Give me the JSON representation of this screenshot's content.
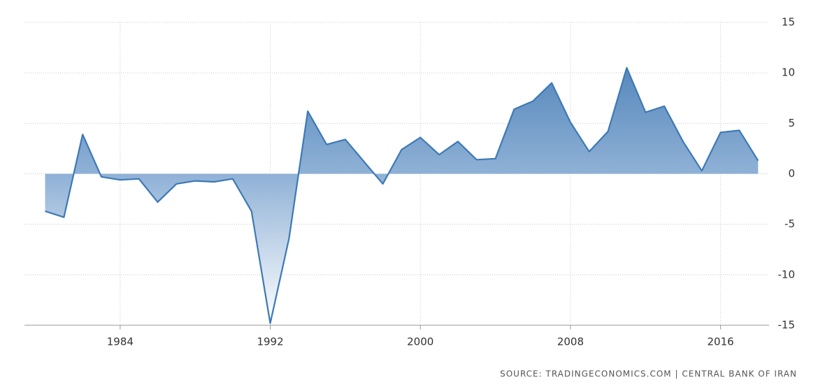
{
  "chart_data": {
    "type": "area",
    "x": [
      1980,
      1981,
      1982,
      1983,
      1984,
      1985,
      1986,
      1987,
      1988,
      1989,
      1990,
      1991,
      1992,
      1993,
      1994,
      1995,
      1996,
      1997,
      1998,
      1999,
      2000,
      2001,
      2002,
      2003,
      2004,
      2005,
      2006,
      2007,
      2008,
      2009,
      2010,
      2011,
      2012,
      2013,
      2014,
      2015,
      2016,
      2017,
      2018
    ],
    "values": [
      -3.7,
      -4.3,
      3.9,
      -0.3,
      -0.6,
      -0.5,
      -2.8,
      -1.0,
      -0.7,
      -0.8,
      -0.5,
      -3.7,
      -14.8,
      -6.4,
      6.2,
      2.9,
      3.4,
      1.2,
      -1.0,
      2.4,
      3.6,
      1.9,
      3.2,
      1.4,
      1.5,
      6.4,
      7.2,
      9.0,
      5.1,
      2.2,
      4.2,
      10.5,
      6.1,
      6.7,
      3.2,
      0.3,
      4.1,
      4.3,
      1.3
    ],
    "color": "#3d79b6",
    "xlim": [
      1978.9,
      2018.4
    ],
    "xticks": [
      1984,
      1992,
      2000,
      2008,
      2016
    ],
    "ylim": [
      -15,
      15
    ],
    "yticks": [
      15,
      10,
      5,
      0,
      -5,
      -10,
      -15
    ],
    "grid": true,
    "source": "SOURCE: TRADINGECONOMICS.COM | CENTRAL BANK OF IRAN"
  }
}
